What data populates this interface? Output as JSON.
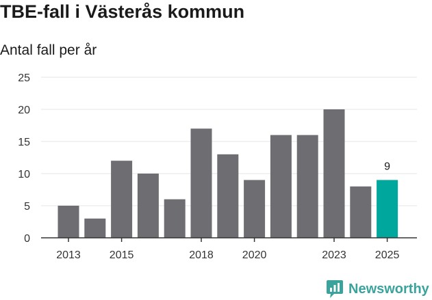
{
  "chart_data": {
    "type": "bar",
    "title": "TBE-fall i Västerås kommun",
    "subtitle": "Antal fall per år",
    "xlabel": "",
    "ylabel": "",
    "categories": [
      "2013",
      "2014",
      "2015",
      "2016",
      "2017",
      "2018",
      "2019",
      "2020",
      "2021",
      "2022",
      "2023",
      "2024",
      "2025"
    ],
    "values": [
      5,
      3,
      12,
      10,
      6,
      17,
      13,
      9,
      16,
      16,
      20,
      8,
      9
    ],
    "x_tick_labels": [
      "2013",
      "2015",
      "2018",
      "2020",
      "2023",
      "2025"
    ],
    "y_ticks": [
      "0",
      "5",
      "10",
      "15",
      "20",
      "25"
    ],
    "ylim": [
      0,
      25
    ],
    "highlight_index": 12,
    "highlight_label": "9",
    "grid": true
  },
  "colors": {
    "bar": "#6e6d72",
    "highlight": "#00a79d",
    "grid": "#e6e6e6",
    "axis": "#333333",
    "brand": "#3aa39b"
  },
  "brand": {
    "name": "Newsworthy",
    "icon": "bar-chart-logo-icon"
  }
}
